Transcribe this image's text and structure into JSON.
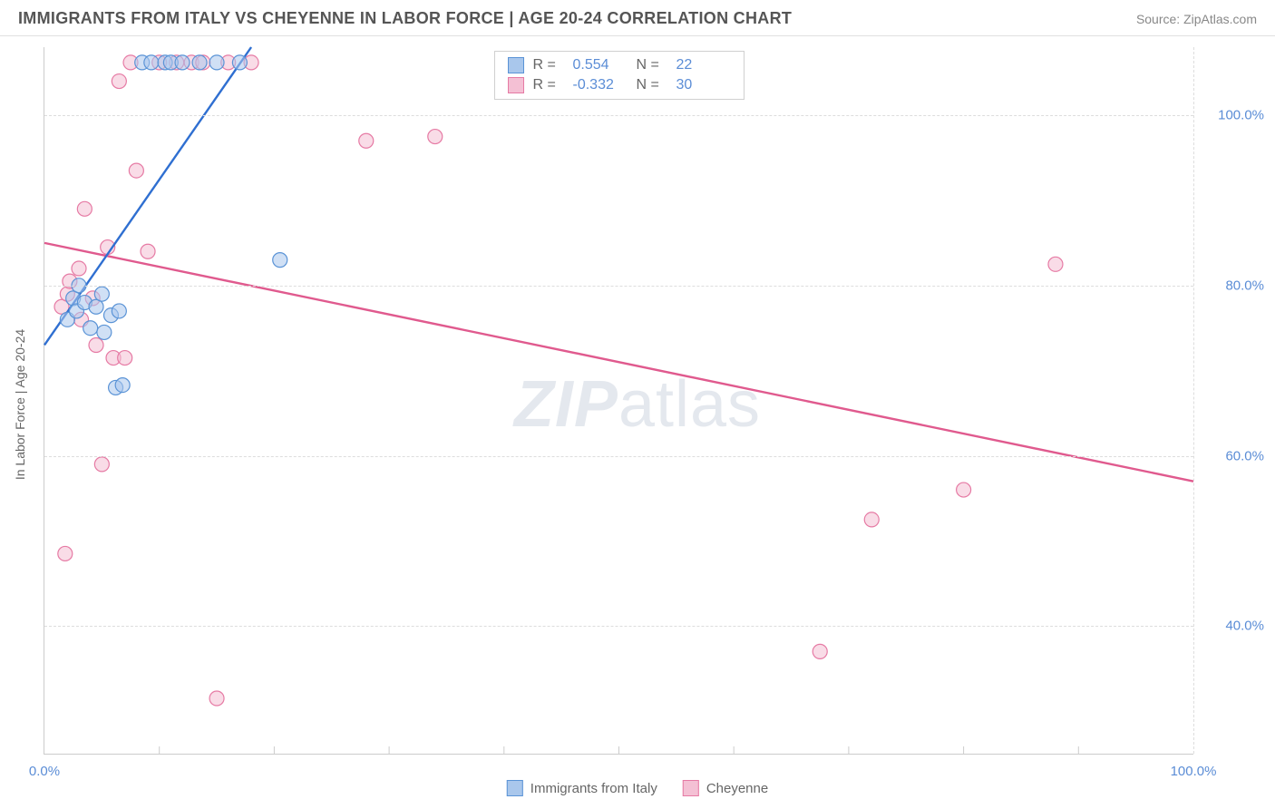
{
  "header": {
    "title": "IMMIGRANTS FROM ITALY VS CHEYENNE IN LABOR FORCE | AGE 20-24 CORRELATION CHART",
    "source": "Source: ZipAtlas.com"
  },
  "chart": {
    "type": "scatter",
    "ylabel": "In Labor Force | Age 20-24",
    "xlim": [
      0,
      100
    ],
    "ylim": [
      25,
      108
    ],
    "xticks": [
      0,
      100
    ],
    "xtick_labels": [
      "0.0%",
      "100.0%"
    ],
    "xtick_minor": [
      10,
      20,
      30,
      40,
      50,
      60,
      70,
      80,
      90
    ],
    "yticks": [
      40,
      60,
      80,
      100
    ],
    "ytick_labels": [
      "40.0%",
      "60.0%",
      "80.0%",
      "100.0%"
    ],
    "background_color": "#ffffff",
    "grid_color": "#dddddd",
    "axis_color": "#cccccc",
    "marker_radius": 8,
    "marker_opacity": 0.55,
    "series": [
      {
        "name": "Immigrants from Italy",
        "color_fill": "#a9c7ec",
        "color_stroke": "#5a93d6",
        "line_color": "#2f6fd1",
        "line_width": 2.4,
        "R": "0.554",
        "N": "22",
        "trend": {
          "x1": 0,
          "y1": 73,
          "x2": 18,
          "y2": 108
        },
        "points": [
          {
            "x": 2.0,
            "y": 76.0
          },
          {
            "x": 2.5,
            "y": 78.5
          },
          {
            "x": 2.8,
            "y": 77.0
          },
          {
            "x": 3.0,
            "y": 80.0
          },
          {
            "x": 3.5,
            "y": 78.0
          },
          {
            "x": 4.0,
            "y": 75.0
          },
          {
            "x": 4.5,
            "y": 77.5
          },
          {
            "x": 5.0,
            "y": 79.0
          },
          {
            "x": 5.2,
            "y": 74.5
          },
          {
            "x": 5.8,
            "y": 76.5
          },
          {
            "x": 6.2,
            "y": 68.0
          },
          {
            "x": 6.8,
            "y": 68.3
          },
          {
            "x": 6.5,
            "y": 77.0
          },
          {
            "x": 8.5,
            "y": 106.2
          },
          {
            "x": 9.3,
            "y": 106.2
          },
          {
            "x": 10.5,
            "y": 106.2
          },
          {
            "x": 11.0,
            "y": 106.2
          },
          {
            "x": 12.0,
            "y": 106.2
          },
          {
            "x": 13.5,
            "y": 106.2
          },
          {
            "x": 15.0,
            "y": 106.2
          },
          {
            "x": 17.0,
            "y": 106.2
          },
          {
            "x": 20.5,
            "y": 83.0
          }
        ]
      },
      {
        "name": "Cheyenne",
        "color_fill": "#f4c0d4",
        "color_stroke": "#e67aa4",
        "line_color": "#e05a8e",
        "line_width": 2.4,
        "R": "-0.332",
        "N": "30",
        "trend": {
          "x1": 0,
          "y1": 85,
          "x2": 100,
          "y2": 57
        },
        "points": [
          {
            "x": 1.5,
            "y": 77.5
          },
          {
            "x": 2.0,
            "y": 79.0
          },
          {
            "x": 2.2,
            "y": 80.5
          },
          {
            "x": 3.0,
            "y": 82.0
          },
          {
            "x": 1.8,
            "y": 48.5
          },
          {
            "x": 3.5,
            "y": 89.0
          },
          {
            "x": 4.5,
            "y": 73.0
          },
          {
            "x": 5.0,
            "y": 59.0
          },
          {
            "x": 5.5,
            "y": 84.5
          },
          {
            "x": 6.0,
            "y": 71.5
          },
          {
            "x": 6.5,
            "y": 104.0
          },
          {
            "x": 7.0,
            "y": 71.5
          },
          {
            "x": 7.5,
            "y": 106.2
          },
          {
            "x": 8.0,
            "y": 93.5
          },
          {
            "x": 9.0,
            "y": 84.0
          },
          {
            "x": 10.0,
            "y": 106.2
          },
          {
            "x": 11.5,
            "y": 106.2
          },
          {
            "x": 12.8,
            "y": 106.2
          },
          {
            "x": 13.8,
            "y": 106.2
          },
          {
            "x": 15.0,
            "y": 31.5
          },
          {
            "x": 16.0,
            "y": 106.2
          },
          {
            "x": 18.0,
            "y": 106.2
          },
          {
            "x": 28.0,
            "y": 97.0
          },
          {
            "x": 34.0,
            "y": 97.5
          },
          {
            "x": 67.5,
            "y": 37.0
          },
          {
            "x": 72.0,
            "y": 52.5
          },
          {
            "x": 80.0,
            "y": 56.0
          },
          {
            "x": 88.0,
            "y": 82.5
          },
          {
            "x": 3.2,
            "y": 76.0
          },
          {
            "x": 4.2,
            "y": 78.5
          }
        ]
      }
    ]
  },
  "legend_top": {
    "rows": [
      {
        "swatch_fill": "#a9c7ec",
        "swatch_stroke": "#5a93d6",
        "r_label": "R =",
        "r_value": "0.554",
        "n_label": "N =",
        "n_value": "22"
      },
      {
        "swatch_fill": "#f4c0d4",
        "swatch_stroke": "#e67aa4",
        "r_label": "R =",
        "r_value": "-0.332",
        "n_label": "N =",
        "n_value": "30"
      }
    ]
  },
  "legend_bottom": {
    "items": [
      {
        "swatch_fill": "#a9c7ec",
        "swatch_stroke": "#5a93d6",
        "label": "Immigrants from Italy"
      },
      {
        "swatch_fill": "#f4c0d4",
        "swatch_stroke": "#e67aa4",
        "label": "Cheyenne"
      }
    ]
  },
  "watermark": {
    "zip": "ZIP",
    "atlas": "atlas"
  }
}
